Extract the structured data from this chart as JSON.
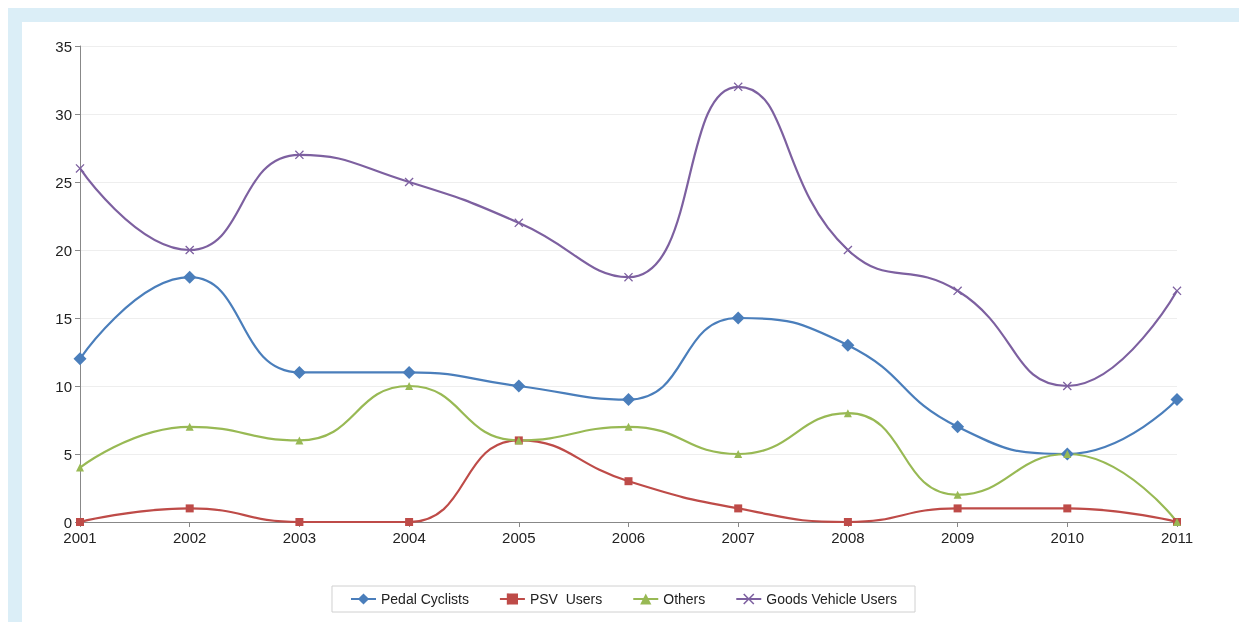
{
  "chart_data": {
    "type": "line",
    "categories": [
      "2001",
      "2002",
      "2003",
      "2004",
      "2005",
      "2006",
      "2007",
      "2008",
      "2009",
      "2010",
      "2011"
    ],
    "series": [
      {
        "name": "Pedal Cyclists",
        "color": "#4a7ebb",
        "marker": "diamond",
        "values": [
          12,
          18,
          11,
          11,
          10,
          9,
          15,
          13,
          7,
          5,
          9
        ]
      },
      {
        "name": "PSV  Users",
        "color": "#be4b48",
        "marker": "square",
        "values": [
          0,
          1,
          0,
          0,
          6,
          3,
          1,
          0,
          1,
          1,
          0
        ]
      },
      {
        "name": "Others",
        "color": "#98b954",
        "marker": "triangle",
        "values": [
          4,
          7,
          6,
          10,
          6,
          7,
          5,
          8,
          2,
          5,
          0
        ]
      },
      {
        "name": "Goods Vehicle Users",
        "color": "#7d60a0",
        "marker": "cross",
        "values": [
          26,
          20,
          27,
          25,
          22,
          18,
          32,
          20,
          17,
          10,
          17
        ]
      }
    ],
    "ylim": [
      0,
      35
    ],
    "yticks": [
      0,
      5,
      10,
      15,
      20,
      25,
      30,
      35
    ],
    "grid": "y",
    "legend": "bottom",
    "line_style": "solid"
  }
}
